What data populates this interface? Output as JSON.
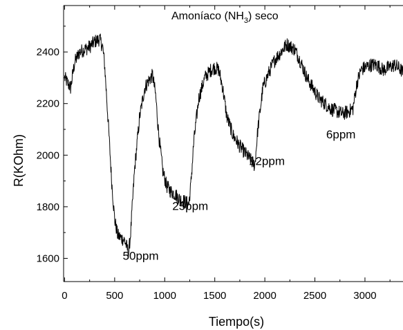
{
  "chart_data": {
    "type": "line",
    "title": {
      "main": "Amoníaco (NH",
      "subscript": "3",
      "suffix": ") seco"
    },
    "xlabel": "Tiempo(s)",
    "ylabel": "R(KOhm)",
    "xlim": [
      -10,
      3380
    ],
    "ylim": [
      1510,
      2580
    ],
    "x_ticks": [
      0,
      500,
      1000,
      1500,
      2000,
      2500,
      3000
    ],
    "x_tick_labels": [
      "0",
      "500",
      "1000",
      "1500",
      "2000",
      "2500",
      "3000"
    ],
    "y_ticks": [
      1600,
      1800,
      2000,
      2200,
      2400
    ],
    "y_tick_labels": [
      "1600",
      "1800",
      "2000",
      "2200",
      "2400"
    ],
    "grid": false,
    "legend": "none",
    "line_color": "#000000",
    "noise_amplitude": 28,
    "series": [
      {
        "x": [
          0,
          30,
          60,
          80,
          100,
          150,
          200,
          250,
          300,
          350,
          380,
          400,
          440,
          470,
          500,
          530,
          560,
          600,
          640,
          660,
          700,
          750,
          800,
          840,
          880,
          910,
          940,
          980,
          1020,
          1060,
          1100,
          1150,
          1200,
          1240,
          1260,
          1290,
          1340,
          1400,
          1460,
          1500,
          1540,
          1580,
          1620,
          1680,
          1740,
          1800,
          1860,
          1900,
          1930,
          1980,
          2040,
          2100,
          2160,
          2220,
          2260,
          2300,
          2360,
          2420,
          2480,
          2540,
          2600,
          2660,
          2720,
          2780,
          2840,
          2880,
          2920,
          2960,
          3000,
          3060,
          3120,
          3180,
          3240,
          3300,
          3360,
          3380
        ],
        "y": [
          2300,
          2280,
          2260,
          2310,
          2360,
          2400,
          2410,
          2420,
          2440,
          2450,
          2420,
          2350,
          2100,
          1900,
          1750,
          1690,
          1680,
          1670,
          1620,
          1700,
          1950,
          2150,
          2260,
          2290,
          2310,
          2230,
          2080,
          1940,
          1880,
          1860,
          1850,
          1830,
          1820,
          1810,
          1880,
          2050,
          2220,
          2300,
          2330,
          2340,
          2330,
          2260,
          2150,
          2080,
          2040,
          2010,
          1980,
          1960,
          2100,
          2260,
          2320,
          2370,
          2400,
          2430,
          2420,
          2410,
          2360,
          2300,
          2260,
          2220,
          2200,
          2180,
          2170,
          2160,
          2170,
          2180,
          2280,
          2330,
          2340,
          2350,
          2350,
          2330,
          2340,
          2350,
          2330,
          2320
        ]
      }
    ],
    "annotations": [
      {
        "text": "50ppm",
        "x": 760,
        "y": 1595
      },
      {
        "text": "25ppm",
        "x": 1255,
        "y": 1788
      },
      {
        "text": "12ppm",
        "x": 2020,
        "y": 1962
      },
      {
        "text": "6ppm",
        "x": 2760,
        "y": 2065
      }
    ]
  }
}
